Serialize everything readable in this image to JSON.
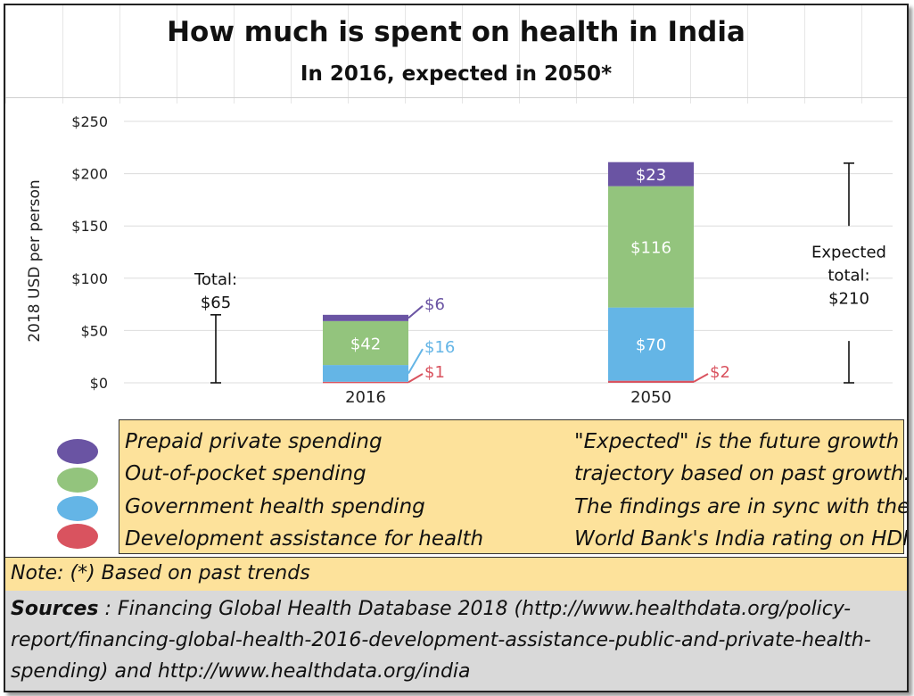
{
  "title": "How much is spent on health in India",
  "subtitle": "In 2016, expected in 2050*",
  "chart_data": {
    "type": "bar",
    "stacked": true,
    "categories": [
      "2016",
      "2050"
    ],
    "ylabel": "2018 USD per person",
    "ylim": [
      0,
      250
    ],
    "yticks": [
      "$0",
      "$50",
      "$100",
      "$150",
      "$200",
      "$250"
    ],
    "series": [
      {
        "name": "Development assistance for health",
        "values": [
          1,
          2
        ],
        "labels": [
          "$1",
          "$2"
        ],
        "color": "#d9535f"
      },
      {
        "name": "Government health spending",
        "values": [
          16,
          70
        ],
        "labels": [
          "$16",
          "$70"
        ],
        "color": "#64b5e6"
      },
      {
        "name": "Out-of-pocket spending",
        "values": [
          42,
          116
        ],
        "labels": [
          "$42",
          "$116"
        ],
        "color": "#93c47d"
      },
      {
        "name": "Prepaid private spending",
        "values": [
          6,
          23
        ],
        "labels": [
          "$6",
          "$23"
        ],
        "color": "#6a54a3"
      }
    ],
    "annotations": {
      "total_2016": {
        "label": "Total:",
        "value_label": "$65",
        "value": 65
      },
      "total_2050": {
        "label_line1": "Expected",
        "label_line2": "total:",
        "value_label": "$210",
        "value": 210
      }
    }
  },
  "legend": {
    "items": [
      {
        "label": "Prepaid private spending",
        "color": "#6a54a3"
      },
      {
        "label": "Out-of-pocket spending",
        "color": "#93c47d"
      },
      {
        "label": "Government health spending",
        "color": "#64b5e6"
      },
      {
        "label": "Development assistance for health",
        "color": "#d9535f"
      }
    ]
  },
  "note_right": {
    "lines": [
      "\"Expected\" is the future growth",
      "trajectory based on past growth.",
      "The findings are in sync with the",
      "World Bank's India rating on HDI"
    ]
  },
  "note": "Note: (*) Based on past trends",
  "sources": {
    "label": "Sources",
    "line1": " : Financing Global Health Database 2018 (http://www.healthdata.org/policy-",
    "line2": "report/financing-global-health-2016-development-assistance-public-and-private-health-",
    "line3": "spending) and http://www.healthdata.org/india"
  }
}
